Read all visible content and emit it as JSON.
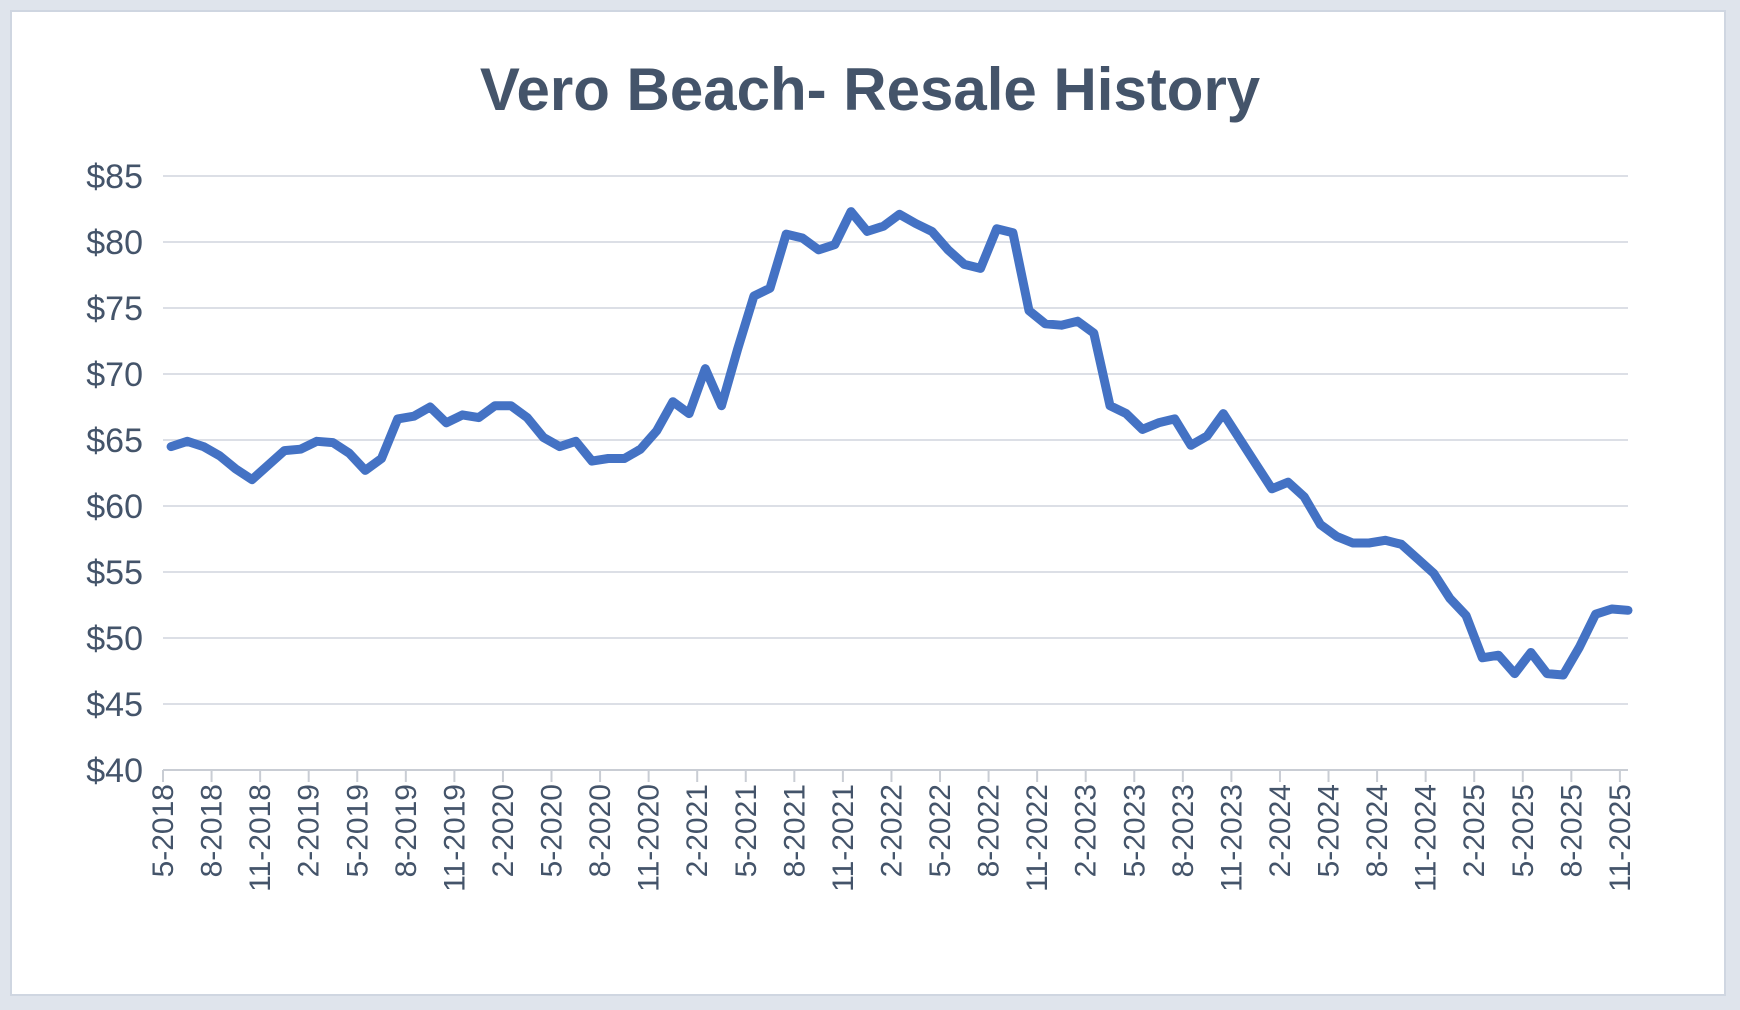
{
  "chart_data": {
    "type": "line",
    "title": "Vero Beach- Resale History",
    "xlabel": "",
    "ylabel": "",
    "ylim": [
      40,
      85
    ],
    "y_ticks": [
      "$40",
      "$45",
      "$50",
      "$55",
      "$60",
      "$65",
      "$70",
      "$75",
      "$80",
      "$85"
    ],
    "x_ticks": [
      "5-2018",
      "8-2018",
      "11-2018",
      "2-2019",
      "5-2019",
      "8-2019",
      "11-2019",
      "2-2020",
      "5-2020",
      "8-2020",
      "11-2020",
      "2-2021",
      "5-2021",
      "8-2021",
      "11-2021",
      "2-2022",
      "5-2022",
      "8-2022",
      "11-2022",
      "2-2023",
      "5-2023",
      "8-2023",
      "11-2023",
      "2-2024",
      "5-2024",
      "8-2024",
      "11-2024",
      "2-2025",
      "5-2025",
      "8-2025",
      "11-2025"
    ],
    "grid": true,
    "legend": "none",
    "line_color": "#4472c4",
    "series": [
      {
        "values": [
          64.5,
          64.9,
          64.5,
          63.8,
          62.8,
          62.0,
          63.1,
          64.2,
          64.3,
          64.9,
          64.8,
          64.0,
          62.7,
          63.6,
          66.6,
          66.8,
          67.5,
          66.3,
          66.9,
          66.7,
          67.6,
          67.6,
          66.7,
          65.2,
          64.5,
          64.9,
          63.4,
          63.6,
          63.6,
          64.3,
          65.7,
          67.9,
          67.0,
          70.4,
          67.6,
          71.9,
          75.9,
          76.5,
          80.6,
          80.3,
          79.4,
          79.8,
          82.3,
          80.8,
          81.2,
          82.1,
          81.4,
          80.8,
          79.4,
          78.3,
          78.0,
          81.0,
          80.7,
          74.8,
          73.8,
          73.7,
          74.0,
          73.1,
          67.6,
          67.0,
          65.8,
          66.3,
          66.6,
          64.6,
          65.3,
          67.0,
          65.1,
          63.2,
          61.3,
          61.8,
          60.7,
          58.6,
          57.7,
          57.2,
          57.2,
          57.4,
          57.1,
          56.0,
          54.9,
          53.0,
          51.7,
          48.5,
          48.7,
          47.3,
          48.9,
          47.3,
          47.2,
          49.3,
          51.8,
          52.2,
          52.1
        ]
      }
    ]
  }
}
